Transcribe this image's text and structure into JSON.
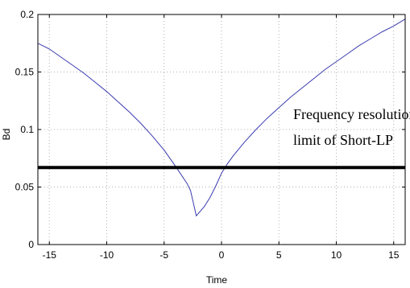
{
  "chart_data": {
    "type": "line",
    "xlabel": "Time",
    "ylabel": "Bd",
    "xlim": [
      -16,
      16
    ],
    "ylim": [
      0,
      0.2
    ],
    "x_ticks": [
      -15,
      -10,
      -5,
      0,
      5,
      10,
      15
    ],
    "y_ticks": [
      0,
      0.05,
      0.1,
      0.15,
      0.2
    ],
    "x_tick_labels": [
      "-15",
      "-10",
      "-5",
      "0",
      "5",
      "10",
      "15"
    ],
    "y_tick_labels": [
      "0",
      "0.05",
      "0.1",
      "0.15",
      "0.2"
    ],
    "grid": true,
    "series": [
      {
        "color": "#3b3bb0",
        "x": [
          -16,
          -15,
          -14,
          -13,
          -12,
          -11,
          -10,
          -9,
          -8,
          -7,
          -6,
          -5,
          -4,
          -3,
          -2.7,
          -2.2,
          -1.5,
          -1,
          -0.5,
          0,
          0.5,
          1,
          2,
          3,
          4,
          5,
          6,
          7,
          8,
          9,
          10,
          11,
          12,
          13,
          14,
          15,
          16
        ],
        "y": [
          0.175,
          0.17,
          0.163,
          0.156,
          0.149,
          0.141,
          0.133,
          0.124,
          0.115,
          0.105,
          0.094,
          0.082,
          0.068,
          0.053,
          0.047,
          0.025,
          0.033,
          0.041,
          0.051,
          0.062,
          0.07,
          0.077,
          0.089,
          0.1,
          0.11,
          0.119,
          0.128,
          0.136,
          0.144,
          0.152,
          0.159,
          0.166,
          0.173,
          0.179,
          0.185,
          0.19,
          0.196
        ]
      }
    ],
    "threshold": {
      "y": 0.067,
      "color": "#000000"
    },
    "annotation_lines": [
      "Frequency resolution",
      "limit of Short-LP"
    ]
  }
}
